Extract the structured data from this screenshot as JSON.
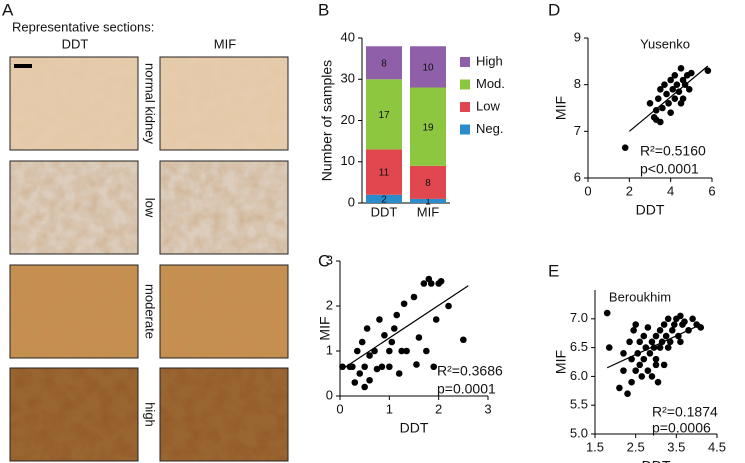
{
  "panel_a": {
    "label": "A",
    "caption": "Representative sections:",
    "columns": [
      "DDT",
      "MIF"
    ],
    "rows": [
      "normal kidney",
      "low",
      "moderate",
      "high"
    ]
  },
  "chart_data": [
    {
      "type": "bar",
      "label": "B",
      "ylabel": "Number of samples",
      "categories": [
        "DDT",
        "MIF"
      ],
      "series": [
        {
          "name": "Neg.",
          "color": "#2b8ccb",
          "values": [
            2,
            1
          ]
        },
        {
          "name": "Low",
          "color": "#e1474e",
          "values": [
            11,
            8
          ]
        },
        {
          "name": "Mod.",
          "color": "#8dc63f",
          "values": [
            17,
            19
          ]
        },
        {
          "name": "High",
          "color": "#8f60a9",
          "values": [
            8,
            10
          ]
        }
      ],
      "ylim": [
        0,
        40
      ],
      "yticks": [
        0,
        10,
        20,
        30,
        40
      ]
    },
    {
      "type": "scatter",
      "label": "C",
      "xlabel": "DDT",
      "ylabel": "MIF",
      "color": "#000000",
      "annotations": [
        "R²=0.3686",
        "p=0.0001"
      ],
      "x": [
        0.05,
        0.2,
        0.3,
        0.35,
        0.4,
        0.45,
        0.5,
        0.5,
        0.55,
        0.6,
        0.7,
        0.75,
        0.8,
        0.85,
        0.9,
        1.0,
        1.0,
        1.1,
        1.15,
        1.2,
        1.25,
        1.3,
        1.35,
        1.5,
        1.55,
        1.6,
        1.7,
        1.75,
        1.8,
        1.85,
        1.9,
        1.95,
        2.0,
        2.05,
        2.2,
        2.5,
        0.6,
        1.05,
        0.25
      ],
      "y": [
        0.65,
        0.65,
        0.3,
        1.0,
        0.5,
        1.2,
        0.2,
        0.65,
        1.5,
        0.9,
        1.0,
        0.6,
        1.7,
        0.65,
        1.35,
        1.0,
        0.65,
        1.5,
        1.8,
        0.5,
        1.0,
        2.05,
        1.0,
        2.2,
        0.7,
        1.3,
        2.5,
        1.0,
        2.6,
        2.5,
        0.65,
        1.7,
        2.5,
        2.55,
        2.0,
        1.25,
        0.35,
        1.2,
        0.65
      ],
      "fit": {
        "x": [
          0.05,
          2.6
        ],
        "y": [
          0.6,
          2.45
        ]
      },
      "xlim": [
        0,
        3
      ],
      "xticks": [
        0,
        1,
        2,
        3
      ],
      "ylim": [
        0,
        3
      ],
      "yticks": [
        0,
        1,
        2,
        3
      ]
    },
    {
      "type": "scatter",
      "label": "D",
      "title": "Yusenko",
      "xlabel": "DDT",
      "ylabel": "MIF",
      "color": "#000000",
      "annotations": [
        "R²=0.5160",
        "p<0.0001"
      ],
      "x": [
        1.8,
        3.0,
        3.2,
        3.3,
        3.4,
        3.5,
        3.5,
        3.6,
        3.7,
        3.8,
        3.9,
        4.0,
        4.0,
        4.1,
        4.2,
        4.2,
        4.3,
        4.4,
        4.5,
        4.5,
        4.6,
        4.7,
        4.8,
        4.9,
        5.0,
        5.8,
        3.3,
        4.6
      ],
      "y": [
        6.65,
        7.6,
        7.3,
        7.25,
        7.7,
        7.2,
        7.9,
        7.5,
        8.0,
        7.8,
        7.6,
        8.1,
        7.4,
        7.9,
        8.2,
        7.7,
        8.0,
        7.85,
        8.35,
        7.6,
        8.1,
        8.0,
        8.2,
        7.9,
        8.25,
        8.3,
        7.45,
        7.7
      ],
      "fit": {
        "x": [
          2.0,
          5.8
        ],
        "y": [
          7.0,
          8.4
        ]
      },
      "xlim": [
        0,
        6
      ],
      "xticks": [
        0,
        2,
        4,
        6
      ],
      "ylim": [
        6,
        9
      ],
      "yticks": [
        6,
        7,
        8,
        9
      ]
    },
    {
      "type": "scatter",
      "label": "E",
      "title": "Beroukhim",
      "xlabel": "DDT",
      "ylabel": "MIF",
      "color": "#000000",
      "annotations": [
        "R²=0.1874",
        "p=0.0006"
      ],
      "x": [
        1.8,
        1.85,
        2.1,
        2.2,
        2.3,
        2.35,
        2.4,
        2.45,
        2.5,
        2.5,
        2.55,
        2.6,
        2.6,
        2.65,
        2.7,
        2.7,
        2.75,
        2.8,
        2.8,
        2.85,
        2.9,
        2.9,
        2.95,
        3.0,
        3.0,
        3.05,
        3.1,
        3.1,
        3.15,
        3.2,
        3.2,
        3.25,
        3.3,
        3.3,
        3.35,
        3.4,
        3.45,
        3.5,
        3.55,
        3.6,
        3.65,
        3.7,
        3.8,
        3.9,
        4.0,
        4.1,
        2.4,
        3.0,
        2.2,
        3.6
      ],
      "y": [
        7.1,
        6.5,
        5.8,
        6.4,
        5.7,
        6.6,
        6.3,
        6.8,
        6.1,
        6.9,
        6.4,
        6.2,
        6.6,
        6.0,
        6.7,
        6.3,
        6.5,
        6.1,
        6.85,
        6.4,
        6.6,
        6.0,
        6.5,
        6.7,
        6.3,
        5.9,
        6.8,
        6.5,
        6.6,
        6.9,
        6.2,
        6.7,
        6.5,
        7.0,
        6.6,
        6.8,
        6.9,
        7.0,
        6.7,
        7.05,
        6.9,
        6.95,
        6.8,
        7.0,
        6.9,
        6.85,
        5.9,
        6.2,
        6.1,
        6.6
      ],
      "fit": {
        "x": [
          1.8,
          4.1
        ],
        "y": [
          6.15,
          6.9
        ]
      },
      "xlim": [
        1.5,
        4.5
      ],
      "xticks": [
        1.5,
        2.5,
        3.5,
        4.5
      ],
      "ylim": [
        5,
        7.5
      ],
      "yticks": [
        {
          "value": 5,
          "label": "5.0"
        },
        {
          "value": 5.5,
          "label": "5.5"
        },
        {
          "value": 6,
          "label": "6.0"
        },
        {
          "value": 6.5,
          "label": "6.5"
        },
        {
          "value": 7,
          "label": "7.0"
        }
      ]
    }
  ]
}
